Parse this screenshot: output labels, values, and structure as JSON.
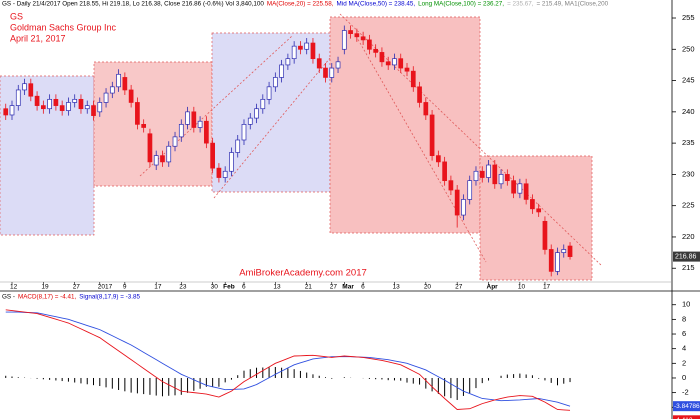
{
  "chart_data": [
    {
      "type": "candlestick",
      "header": [
        {
          "text": "GS - Daily 21/4/2017 Open 218.55, Hi 219.18, Lo 216.38, Close 216.86 (-0.6%) Vol 3,840,100",
          "color": "#000000"
        },
        {
          "text": "MA(Close,20) = 225.58,",
          "color": "#e00000"
        },
        {
          "text": "Mid MA(Close,50) = 238.45,",
          "color": "#0000d0"
        },
        {
          "text": "Long MA(Close,100) = 236.27,",
          "color": "#009000"
        },
        {
          "text": "= 235.67,",
          "color": "#b0b0b0"
        },
        {
          "text": "= 215.49, MA1(Close,200",
          "color": "#808080"
        }
      ],
      "title": "GS",
      "subtitle": "Goldman Sachs Group Inc",
      "date": "April 21, 2017",
      "watermark": "AmiBrokerAcademy.com  2017",
      "categories": [
        null,
        "12",
        null,
        null,
        null,
        null,
        "19",
        null,
        null,
        null,
        null,
        "27",
        null,
        null,
        null,
        "2017",
        null,
        null,
        null,
        "9",
        null,
        null,
        null,
        null,
        "17",
        null,
        null,
        null,
        "23",
        null,
        null,
        null,
        null,
        "30",
        null,
        "Feb",
        null,
        null,
        "6",
        null,
        null,
        null,
        null,
        "13",
        null,
        null,
        null,
        null,
        "21",
        null,
        null,
        null,
        "27",
        null,
        "Mar",
        null,
        null,
        "6",
        null,
        null,
        null,
        null,
        "13",
        null,
        null,
        null,
        null,
        "20",
        null,
        null,
        null,
        null,
        "27",
        null,
        null,
        null,
        null,
        "Apr",
        null,
        null,
        null,
        null,
        "10",
        null,
        null,
        null,
        "17",
        null,
        null,
        null,
        null
      ],
      "open": [
        240.5,
        239.5,
        241,
        243.5,
        244.5,
        242.5,
        241,
        240.5,
        242,
        241,
        240.2,
        241.5,
        242,
        240.5,
        241,
        240,
        241.5,
        243,
        244,
        245.5,
        243.5,
        241.5,
        238,
        236.5,
        231.5,
        233,
        232,
        234.5,
        236,
        238,
        240,
        237.5,
        238.5,
        235,
        231,
        229.5,
        230.5,
        233.5,
        235.5,
        238,
        239,
        240.5,
        242,
        244,
        245.5,
        247.5,
        248.5,
        250.5,
        250,
        251,
        248.5,
        247,
        245.5,
        247,
        250,
        253,
        252.5,
        252,
        251.5,
        250,
        249.5,
        248,
        247.5,
        248.5,
        247,
        246.5,
        244,
        241.5,
        239.5,
        233,
        232,
        229,
        227.5,
        223.5,
        226,
        229,
        230.5,
        229.5,
        231.5,
        228.5,
        230,
        229,
        227,
        228.5,
        226,
        224.5,
        222.5,
        218,
        214.5,
        217.5,
        218.55
      ],
      "high": [
        241.3,
        241.8,
        244.3,
        245.3,
        245.3,
        243.3,
        241.8,
        242.8,
        242.8,
        241.8,
        242.3,
        242.8,
        242.8,
        241.8,
        241.8,
        242.3,
        243.8,
        244.8,
        246.8,
        246.3,
        244.3,
        242.3,
        238.8,
        237.3,
        233.8,
        233.8,
        235.3,
        236.8,
        238.8,
        240.8,
        240.8,
        239.3,
        239.3,
        235.8,
        231.8,
        231.3,
        234.3,
        236.3,
        238.8,
        239.8,
        241.3,
        242.8,
        244.8,
        246.3,
        248.3,
        249.3,
        251.3,
        251.3,
        251.8,
        251.8,
        249.3,
        247.8,
        247.8,
        248.8,
        253.8,
        253.8,
        253.3,
        252.8,
        252.3,
        250.8,
        250.3,
        248.8,
        249.3,
        249.3,
        247.8,
        247.3,
        244.8,
        242.3,
        240.3,
        233.8,
        232.8,
        229.8,
        228.3,
        226.8,
        229.8,
        231.3,
        231.3,
        232.3,
        232.3,
        230.8,
        230.8,
        229.8,
        229.3,
        229.3,
        226.8,
        225.3,
        223.3,
        218.8,
        218.3,
        218.8,
        219.18
      ],
      "low": [
        238.7,
        238.7,
        240.2,
        242.7,
        241.7,
        240.2,
        239.7,
        239.7,
        240.2,
        239.4,
        239.4,
        240.7,
        239.7,
        239.7,
        238.6,
        239.2,
        240.7,
        242.2,
        243.2,
        242.7,
        240.7,
        237.2,
        236.7,
        231.2,
        230.7,
        231.2,
        231.2,
        233.7,
        235.2,
        237.2,
        236.7,
        236.7,
        234.2,
        230.2,
        228.7,
        228.7,
        229.7,
        232.7,
        234.7,
        237.2,
        238.2,
        239.7,
        241.2,
        243.2,
        244.7,
        246.7,
        247.7,
        249.2,
        249.2,
        247.7,
        246.2,
        244.7,
        244.7,
        246.2,
        249.2,
        251.7,
        251.2,
        250.7,
        249.2,
        248.7,
        247.2,
        246.7,
        246.7,
        246.2,
        245.7,
        243.2,
        240.7,
        238.7,
        232.2,
        231.2,
        228.2,
        226.7,
        221.5,
        222.7,
        225.2,
        228.2,
        228.7,
        228.7,
        227.7,
        227.7,
        228.2,
        226.2,
        226.2,
        225.2,
        223.7,
        223.2,
        217.2,
        213.7,
        213.9,
        216.7,
        216.38
      ],
      "close": [
        239.5,
        241,
        243.5,
        244.5,
        242.5,
        241,
        240.5,
        242,
        241,
        240.2,
        241.5,
        242,
        240.5,
        241,
        239.4,
        241.5,
        243,
        244,
        246,
        243.5,
        241.5,
        238,
        237.5,
        232,
        233,
        232,
        234.5,
        236,
        238,
        240,
        237.5,
        238.5,
        235,
        231,
        229.5,
        230.5,
        233.5,
        235.5,
        238,
        239,
        240.5,
        242,
        244,
        245.5,
        247.5,
        248.5,
        250.5,
        250,
        251,
        248.5,
        247,
        245.5,
        247,
        248,
        253,
        252.5,
        252,
        251.5,
        250,
        249.5,
        248,
        247.5,
        248.5,
        247,
        246.5,
        244,
        241.5,
        239.5,
        233,
        232,
        229,
        227.5,
        223.5,
        226,
        229,
        230.5,
        229.5,
        231.5,
        228.5,
        230,
        229,
        227,
        228.5,
        226,
        224.5,
        224,
        218,
        214.5,
        217.5,
        218,
        216.86
      ],
      "up_color": "#2b2bb0",
      "down_color": "#e8141c",
      "ylim": [
        212.8,
        256.6
      ],
      "yticks": [
        215,
        220,
        225,
        230,
        235,
        240,
        245,
        250,
        255
      ]
    },
    {
      "type": "macd",
      "header": [
        {
          "text": "GS - ",
          "color": "#000000"
        },
        {
          "text": "MACD(8,17) = -4.41,",
          "color": "#e00000"
        },
        {
          "text": "Signal(8,17,9) = -3.85",
          "color": "#0000d0"
        }
      ],
      "macd": [
        9.3,
        9.2,
        9.1,
        9.0,
        8.9,
        8.8,
        8.54,
        8.28,
        8.02,
        7.76,
        7.5,
        7.1,
        6.7,
        6.3,
        5.9,
        5.5,
        4.9,
        4.3,
        3.7,
        3.1,
        2.5,
        1.9,
        1.3,
        0.7,
        0.1,
        -0.5,
        -0.93,
        -1.37,
        -1.8,
        -1.9,
        -2.0,
        -2.1,
        -2.2,
        -2.4,
        -2.6,
        -2.2,
        -1.8,
        -1.15,
        -0.5,
        0.0,
        0.5,
        1.0,
        1.5,
        2.0,
        2.33,
        2.67,
        3.0,
        3.03,
        3.07,
        3.1,
        3.0,
        2.9,
        2.8,
        2.9,
        3.0,
        2.93,
        2.87,
        2.8,
        2.67,
        2.53,
        2.4,
        2.2,
        2.0,
        1.8,
        1.37,
        0.93,
        0.5,
        -0.35,
        -1.2,
        -2.0,
        -2.8,
        -3.55,
        -4.3,
        -4.25,
        -4.2,
        -3.85,
        -3.5,
        -3.25,
        -3.0,
        -2.8,
        -2.6,
        -2.5,
        -2.4,
        -2.45,
        -2.5,
        -2.9,
        -3.3,
        -3.8,
        -4.3,
        -4.36,
        -4.413
      ],
      "signal": [
        9.0,
        9.0,
        9.0,
        8.95,
        8.92,
        8.9,
        8.72,
        8.54,
        8.36,
        8.18,
        8.0,
        7.72,
        7.44,
        7.16,
        6.88,
        6.6,
        6.18,
        5.76,
        5.34,
        4.92,
        4.5,
        4.0,
        3.5,
        3.0,
        2.5,
        2.0,
        1.5,
        1.0,
        0.5,
        0.13,
        -0.25,
        -0.63,
        -1.0,
        -1.2,
        -1.4,
        -1.6,
        -1.57,
        -1.53,
        -1.5,
        -1.2,
        -0.9,
        -0.43,
        0.03,
        0.5,
        0.93,
        1.37,
        1.8,
        2.07,
        2.33,
        2.6,
        2.7,
        2.8,
        2.9,
        2.9,
        2.9,
        2.9,
        2.87,
        2.83,
        2.8,
        2.7,
        2.6,
        2.5,
        2.33,
        2.17,
        2.0,
        1.7,
        1.4,
        1.1,
        0.63,
        0.17,
        -0.3,
        -0.8,
        -1.3,
        -1.8,
        -2.13,
        -2.47,
        -2.8,
        -2.9,
        -3.0,
        -3.1,
        -3.07,
        -3.03,
        -3.0,
        -2.93,
        -2.87,
        -2.8,
        -2.97,
        -3.13,
        -3.3,
        -3.58,
        -3.84786
      ],
      "histogram": [
        0.3,
        0.2,
        0.1,
        0.05,
        -0.02,
        -0.1,
        -0.18,
        -0.26,
        -0.34,
        -0.42,
        -0.5,
        -0.62,
        -0.74,
        -0.86,
        -0.98,
        -1.1,
        -1.28,
        -1.46,
        -1.64,
        -1.82,
        -2.0,
        -2.1,
        -2.2,
        -2.3,
        -2.4,
        -2.5,
        -2.43,
        -2.37,
        -2.3,
        -2.03,
        -1.75,
        -1.47,
        -1.2,
        -1.2,
        -1.2,
        -0.6,
        -0.23,
        0.38,
        1.0,
        1.2,
        1.4,
        1.43,
        1.47,
        1.5,
        1.4,
        1.3,
        1.2,
        0.96,
        0.74,
        0.5,
        0.3,
        0.1,
        -0.1,
        0.0,
        0.1,
        0.03,
        0.0,
        -0.03,
        -0.13,
        -0.17,
        -0.2,
        -0.3,
        -0.33,
        -0.37,
        -0.63,
        -0.77,
        -0.9,
        -1.45,
        -1.83,
        -2.17,
        -2.5,
        -2.75,
        -3.0,
        -2.45,
        -2.07,
        -1.38,
        -0.7,
        -0.35,
        0.0,
        0.3,
        0.47,
        0.53,
        0.6,
        0.48,
        0.37,
        -0.1,
        -0.33,
        -0.67,
        -1.0,
        -0.78,
        -0.56
      ],
      "macd_color": "#e8141c",
      "signal_color": "#3050e0",
      "histogram_color": "#000000",
      "ylim": [
        -5.6,
        11.6
      ],
      "yticks": [
        10,
        8,
        6,
        4,
        2,
        0,
        -2,
        -4
      ]
    }
  ]
}
